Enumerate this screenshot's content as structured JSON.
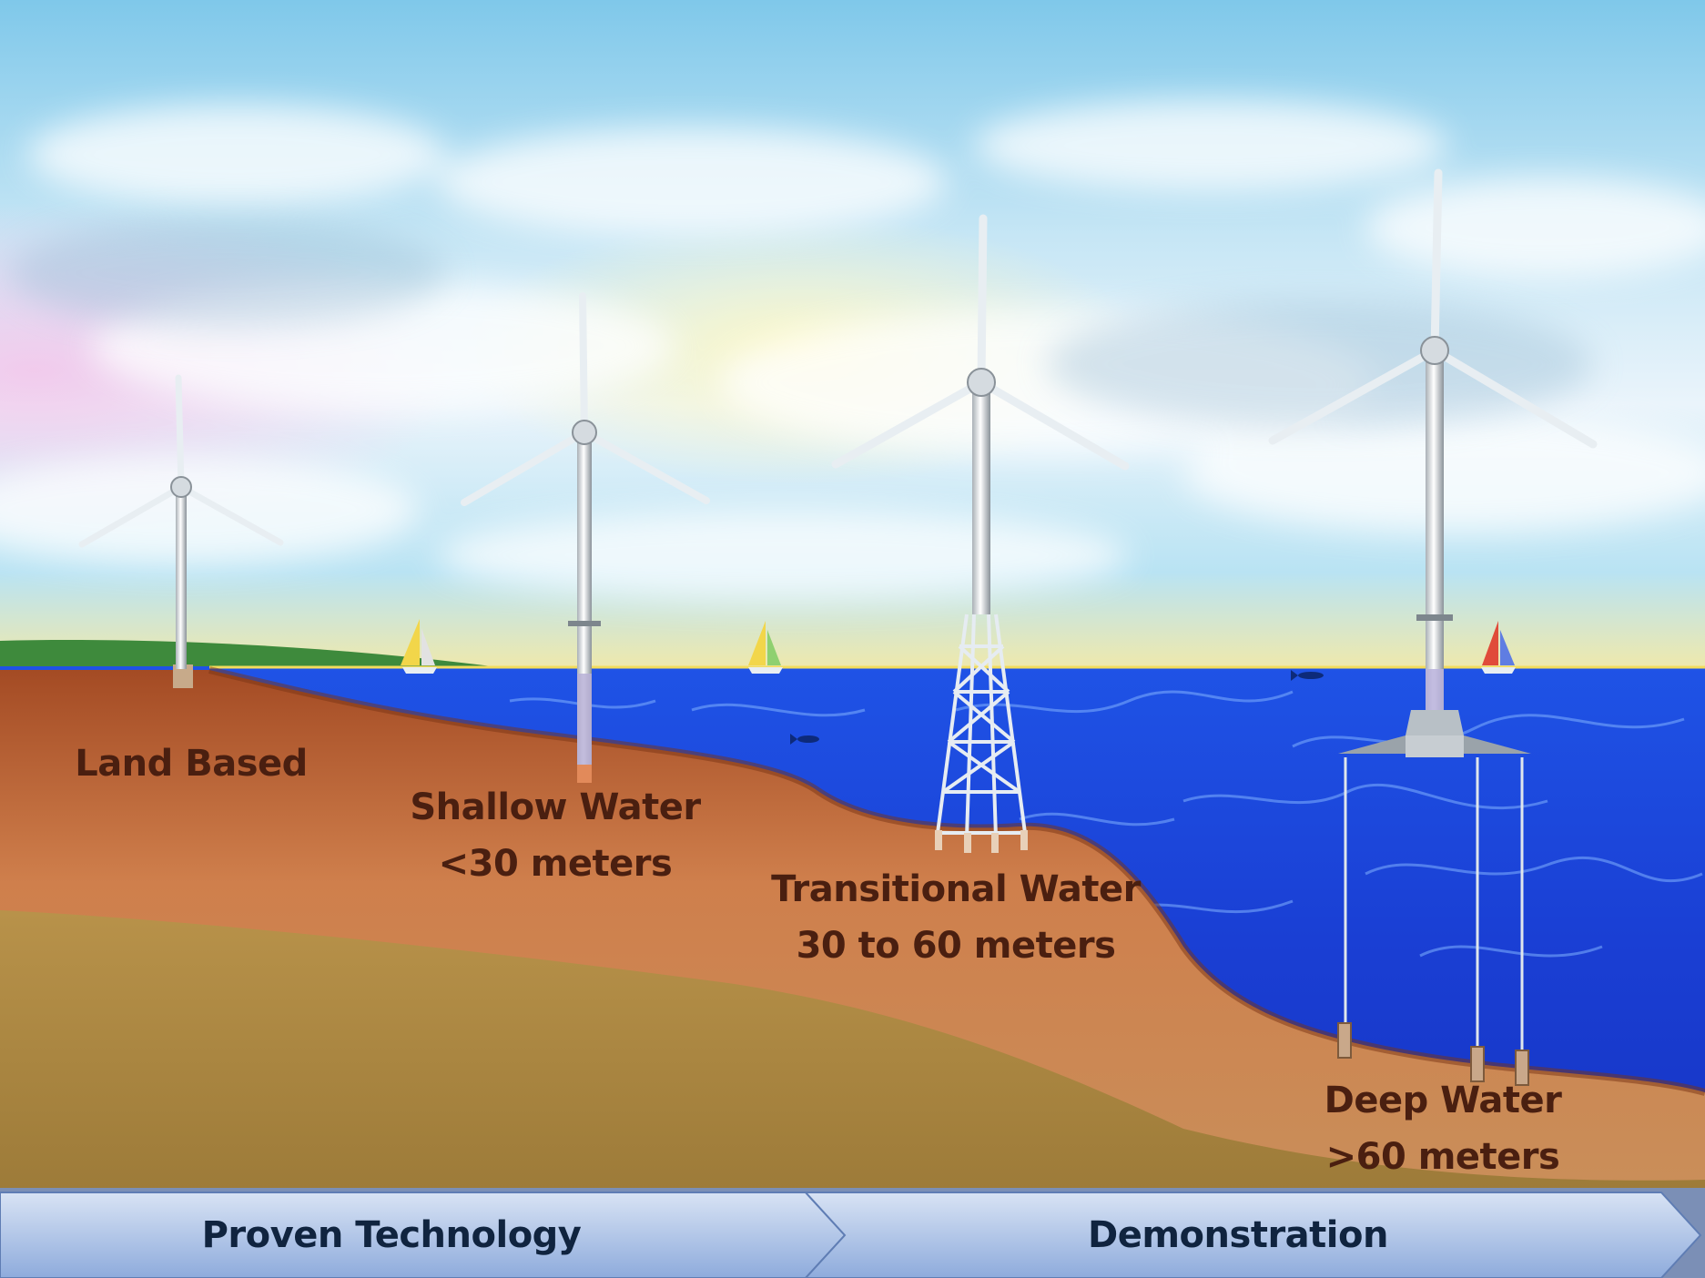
{
  "zones": [
    {
      "id": "land",
      "lines": [
        "Land Based"
      ]
    },
    {
      "id": "shallow",
      "lines": [
        "Shallow Water",
        "<30  meters"
      ]
    },
    {
      "id": "transitional",
      "lines": [
        "Transitional Water",
        "30 to 60 meters"
      ]
    },
    {
      "id": "deep",
      "lines": [
        "Deep Water",
        ">60 meters"
      ]
    }
  ],
  "stages": [
    {
      "label": "Proven Technology"
    },
    {
      "label": "Demonstration"
    }
  ],
  "icons": [
    "wind-turbine-icon",
    "sailboat-icon",
    "fish-icon"
  ],
  "colors": {
    "sky_top": "#8fd0ec",
    "water": "#1b3fd8",
    "seabed": "#c06a3a",
    "soil": "#b39246",
    "label_text": "#4a1f10",
    "arrow_fill": "#8eabdc"
  }
}
